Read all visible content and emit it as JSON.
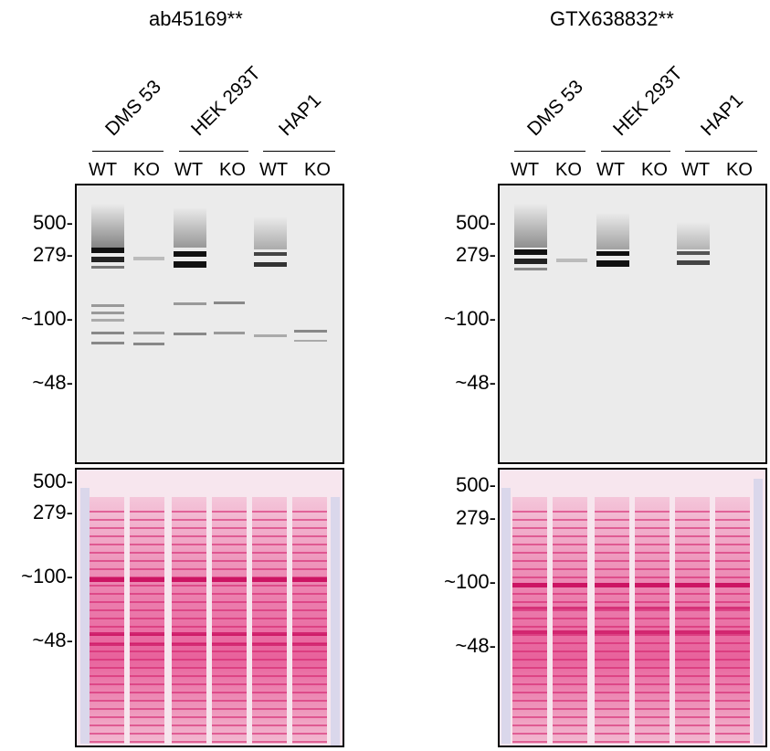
{
  "panels": [
    {
      "antibody": "ab45169**",
      "groups": [
        "DMS 53",
        "HEK 293T",
        "HAP1"
      ],
      "lanes": [
        "WT",
        "KO",
        "WT",
        "KO",
        "WT",
        "KO"
      ],
      "wb_markers": [
        "500-",
        "279-",
        "~100-",
        "~48-"
      ],
      "stain_markers": [
        "500-",
        "279-",
        "~100-",
        "~48-"
      ]
    },
    {
      "antibody": "GTX638832**",
      "groups": [
        "DMS 53",
        "HEK 293T",
        "HAP1"
      ],
      "lanes": [
        "WT",
        "KO",
        "WT",
        "KO",
        "WT",
        "KO"
      ],
      "wb_markers": [
        "500-",
        "279-",
        "~100-",
        "~48-"
      ],
      "stain_markers": [
        "500-",
        "279-",
        "~100-",
        "~48-"
      ]
    }
  ],
  "colors": {
    "blot_bg": "#ebebeb",
    "band": "#111111",
    "stain_bg": "#f7e6ee",
    "stain_band": "#e0307a",
    "ladder": "#8a9fd6"
  }
}
